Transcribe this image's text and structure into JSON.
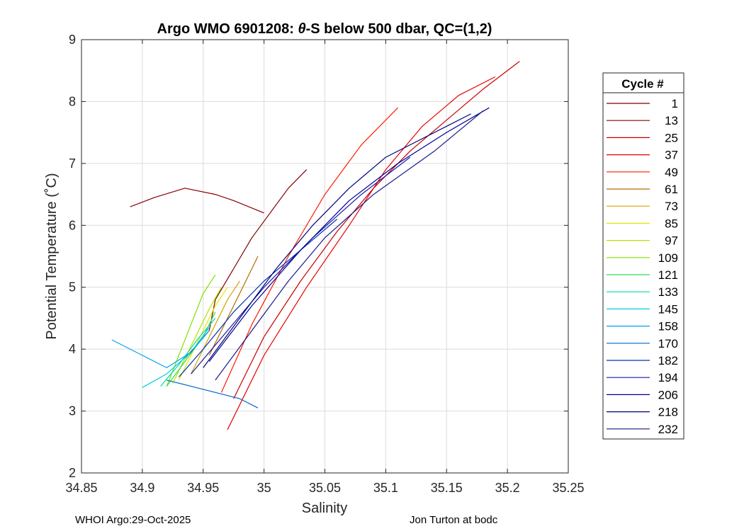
{
  "chart_data": {
    "type": "line",
    "title_prefix": "Argo WMO 6901208: ",
    "title_symbol": "θ",
    "title_suffix": "-S below 500 dbar,  QC=(1,2)",
    "xlabel": "Salinity",
    "ylabel": "Potential Temperature (˚C)",
    "xlim": [
      34.85,
      35.25
    ],
    "ylim": [
      2,
      9
    ],
    "xticks": [
      34.85,
      34.9,
      34.95,
      35,
      35.05,
      35.1,
      35.15,
      35.2,
      35.25
    ],
    "xtick_labels": [
      "34.85",
      "34.9",
      "34.95",
      "35",
      "35.05",
      "35.1",
      "35.15",
      "35.2",
      "35.25"
    ],
    "yticks": [
      2,
      3,
      4,
      5,
      6,
      7,
      8,
      9
    ],
    "ytick_labels": [
      "2",
      "3",
      "4",
      "5",
      "6",
      "7",
      "8",
      "9"
    ],
    "grid": true,
    "legend_title": "Cycle #",
    "legend_position": "outside-right",
    "series": [
      {
        "name": "1",
        "color": "#7f0000",
        "x": [
          34.935,
          34.955,
          34.96,
          34.975,
          34.99,
          35.005,
          35.02,
          35.035
        ],
        "y": [
          3.85,
          4.3,
          4.8,
          5.3,
          5.8,
          6.2,
          6.6,
          6.9
        ]
      },
      {
        "name": "13",
        "color": "#8c0000",
        "x": [
          34.89,
          34.91,
          34.935,
          34.96,
          34.975,
          35.0
        ],
        "y": [
          6.3,
          6.45,
          6.6,
          6.5,
          6.4,
          6.2
        ]
      },
      {
        "name": "25",
        "color": "#c80000",
        "x": [
          34.975,
          35.0,
          35.03,
          35.06,
          35.09,
          35.12,
          35.15,
          35.18,
          35.21
        ],
        "y": [
          3.2,
          4.2,
          5.1,
          5.9,
          6.6,
          7.2,
          7.7,
          8.2,
          8.65
        ]
      },
      {
        "name": "37",
        "color": "#e60000",
        "x": [
          34.97,
          35.0,
          35.035,
          35.07,
          35.1,
          35.13,
          35.16,
          35.19
        ],
        "y": [
          2.7,
          3.9,
          5.0,
          6.0,
          6.9,
          7.6,
          8.1,
          8.4
        ]
      },
      {
        "name": "49",
        "color": "#ff1a00",
        "x": [
          34.965,
          34.99,
          35.02,
          35.05,
          35.08,
          35.11
        ],
        "y": [
          3.3,
          4.4,
          5.5,
          6.5,
          7.3,
          7.9
        ]
      },
      {
        "name": "61",
        "color": "#b36b00",
        "x": [
          34.955,
          34.965,
          34.975,
          34.985,
          34.995
        ],
        "y": [
          3.9,
          4.3,
          4.7,
          5.1,
          5.5
        ]
      },
      {
        "name": "73",
        "color": "#d9a300",
        "x": [
          34.94,
          34.95,
          34.96,
          34.97,
          34.98
        ],
        "y": [
          3.6,
          4.0,
          4.4,
          4.8,
          5.1
        ]
      },
      {
        "name": "85",
        "color": "#e6e600",
        "x": [
          34.93,
          34.94,
          34.95,
          34.96,
          34.97
        ],
        "y": [
          3.5,
          3.9,
          4.3,
          4.7,
          5.0
        ]
      },
      {
        "name": "97",
        "color": "#b3e600",
        "x": [
          34.925,
          34.935,
          34.945,
          34.955,
          34.965
        ],
        "y": [
          3.45,
          3.85,
          4.25,
          4.65,
          5.0
        ]
      },
      {
        "name": "109",
        "color": "#80e000",
        "x": [
          34.92,
          34.93,
          34.94,
          34.95,
          34.96
        ],
        "y": [
          3.4,
          3.9,
          4.4,
          4.9,
          5.2
        ]
      },
      {
        "name": "121",
        "color": "#33d94d",
        "x": [
          34.92,
          34.935,
          34.95,
          34.96
        ],
        "y": [
          3.4,
          3.8,
          4.2,
          4.6
        ]
      },
      {
        "name": "133",
        "color": "#00d9a6",
        "x": [
          34.915,
          34.93,
          34.945,
          34.96
        ],
        "y": [
          3.4,
          3.75,
          4.15,
          4.5
        ]
      },
      {
        "name": "145",
        "color": "#00cce0",
        "x": [
          34.9,
          34.92,
          34.94,
          34.955
        ],
        "y": [
          3.38,
          3.6,
          3.95,
          4.35
        ]
      },
      {
        "name": "158",
        "color": "#00a6e6",
        "x": [
          34.875,
          34.9,
          34.92,
          34.94,
          34.955
        ],
        "y": [
          4.15,
          3.9,
          3.7,
          3.95,
          4.3
        ]
      },
      {
        "name": "170",
        "color": "#0066cc",
        "x": [
          34.92,
          34.94,
          34.96,
          34.98,
          34.995
        ],
        "y": [
          3.5,
          3.4,
          3.3,
          3.2,
          3.05
        ]
      },
      {
        "name": "182",
        "color": "#0033b3",
        "x": [
          34.93,
          34.95,
          34.975,
          35.0,
          35.03,
          35.06
        ],
        "y": [
          3.55,
          4.0,
          4.6,
          5.1,
          5.6,
          6.1
        ]
      },
      {
        "name": "194",
        "color": "#1a1aa6",
        "x": [
          34.94,
          34.97,
          35.0,
          35.04,
          35.08,
          35.12
        ],
        "y": [
          3.6,
          4.3,
          5.0,
          5.8,
          6.5,
          7.1
        ]
      },
      {
        "name": "206",
        "color": "#000099",
        "x": [
          34.955,
          34.99,
          35.03,
          35.07,
          35.11,
          35.15,
          35.185
        ],
        "y": [
          3.8,
          4.7,
          5.6,
          6.4,
          7.0,
          7.5,
          7.9
        ]
      },
      {
        "name": "218",
        "color": "#00007a",
        "x": [
          34.95,
          34.98,
          35.01,
          35.04,
          35.07,
          35.1,
          35.13,
          35.17
        ],
        "y": [
          3.7,
          4.5,
          5.3,
          6.0,
          6.6,
          7.1,
          7.4,
          7.8
        ]
      },
      {
        "name": "232",
        "color": "#1a1a8c",
        "x": [
          34.96,
          34.99,
          35.02,
          35.05,
          35.09,
          35.14,
          35.18
        ],
        "y": [
          3.5,
          4.3,
          5.1,
          5.8,
          6.5,
          7.2,
          7.85
        ]
      }
    ]
  },
  "footer": {
    "left": "WHOI Argo:29-Oct-2025",
    "right": "Jon Turton at bodc"
  }
}
